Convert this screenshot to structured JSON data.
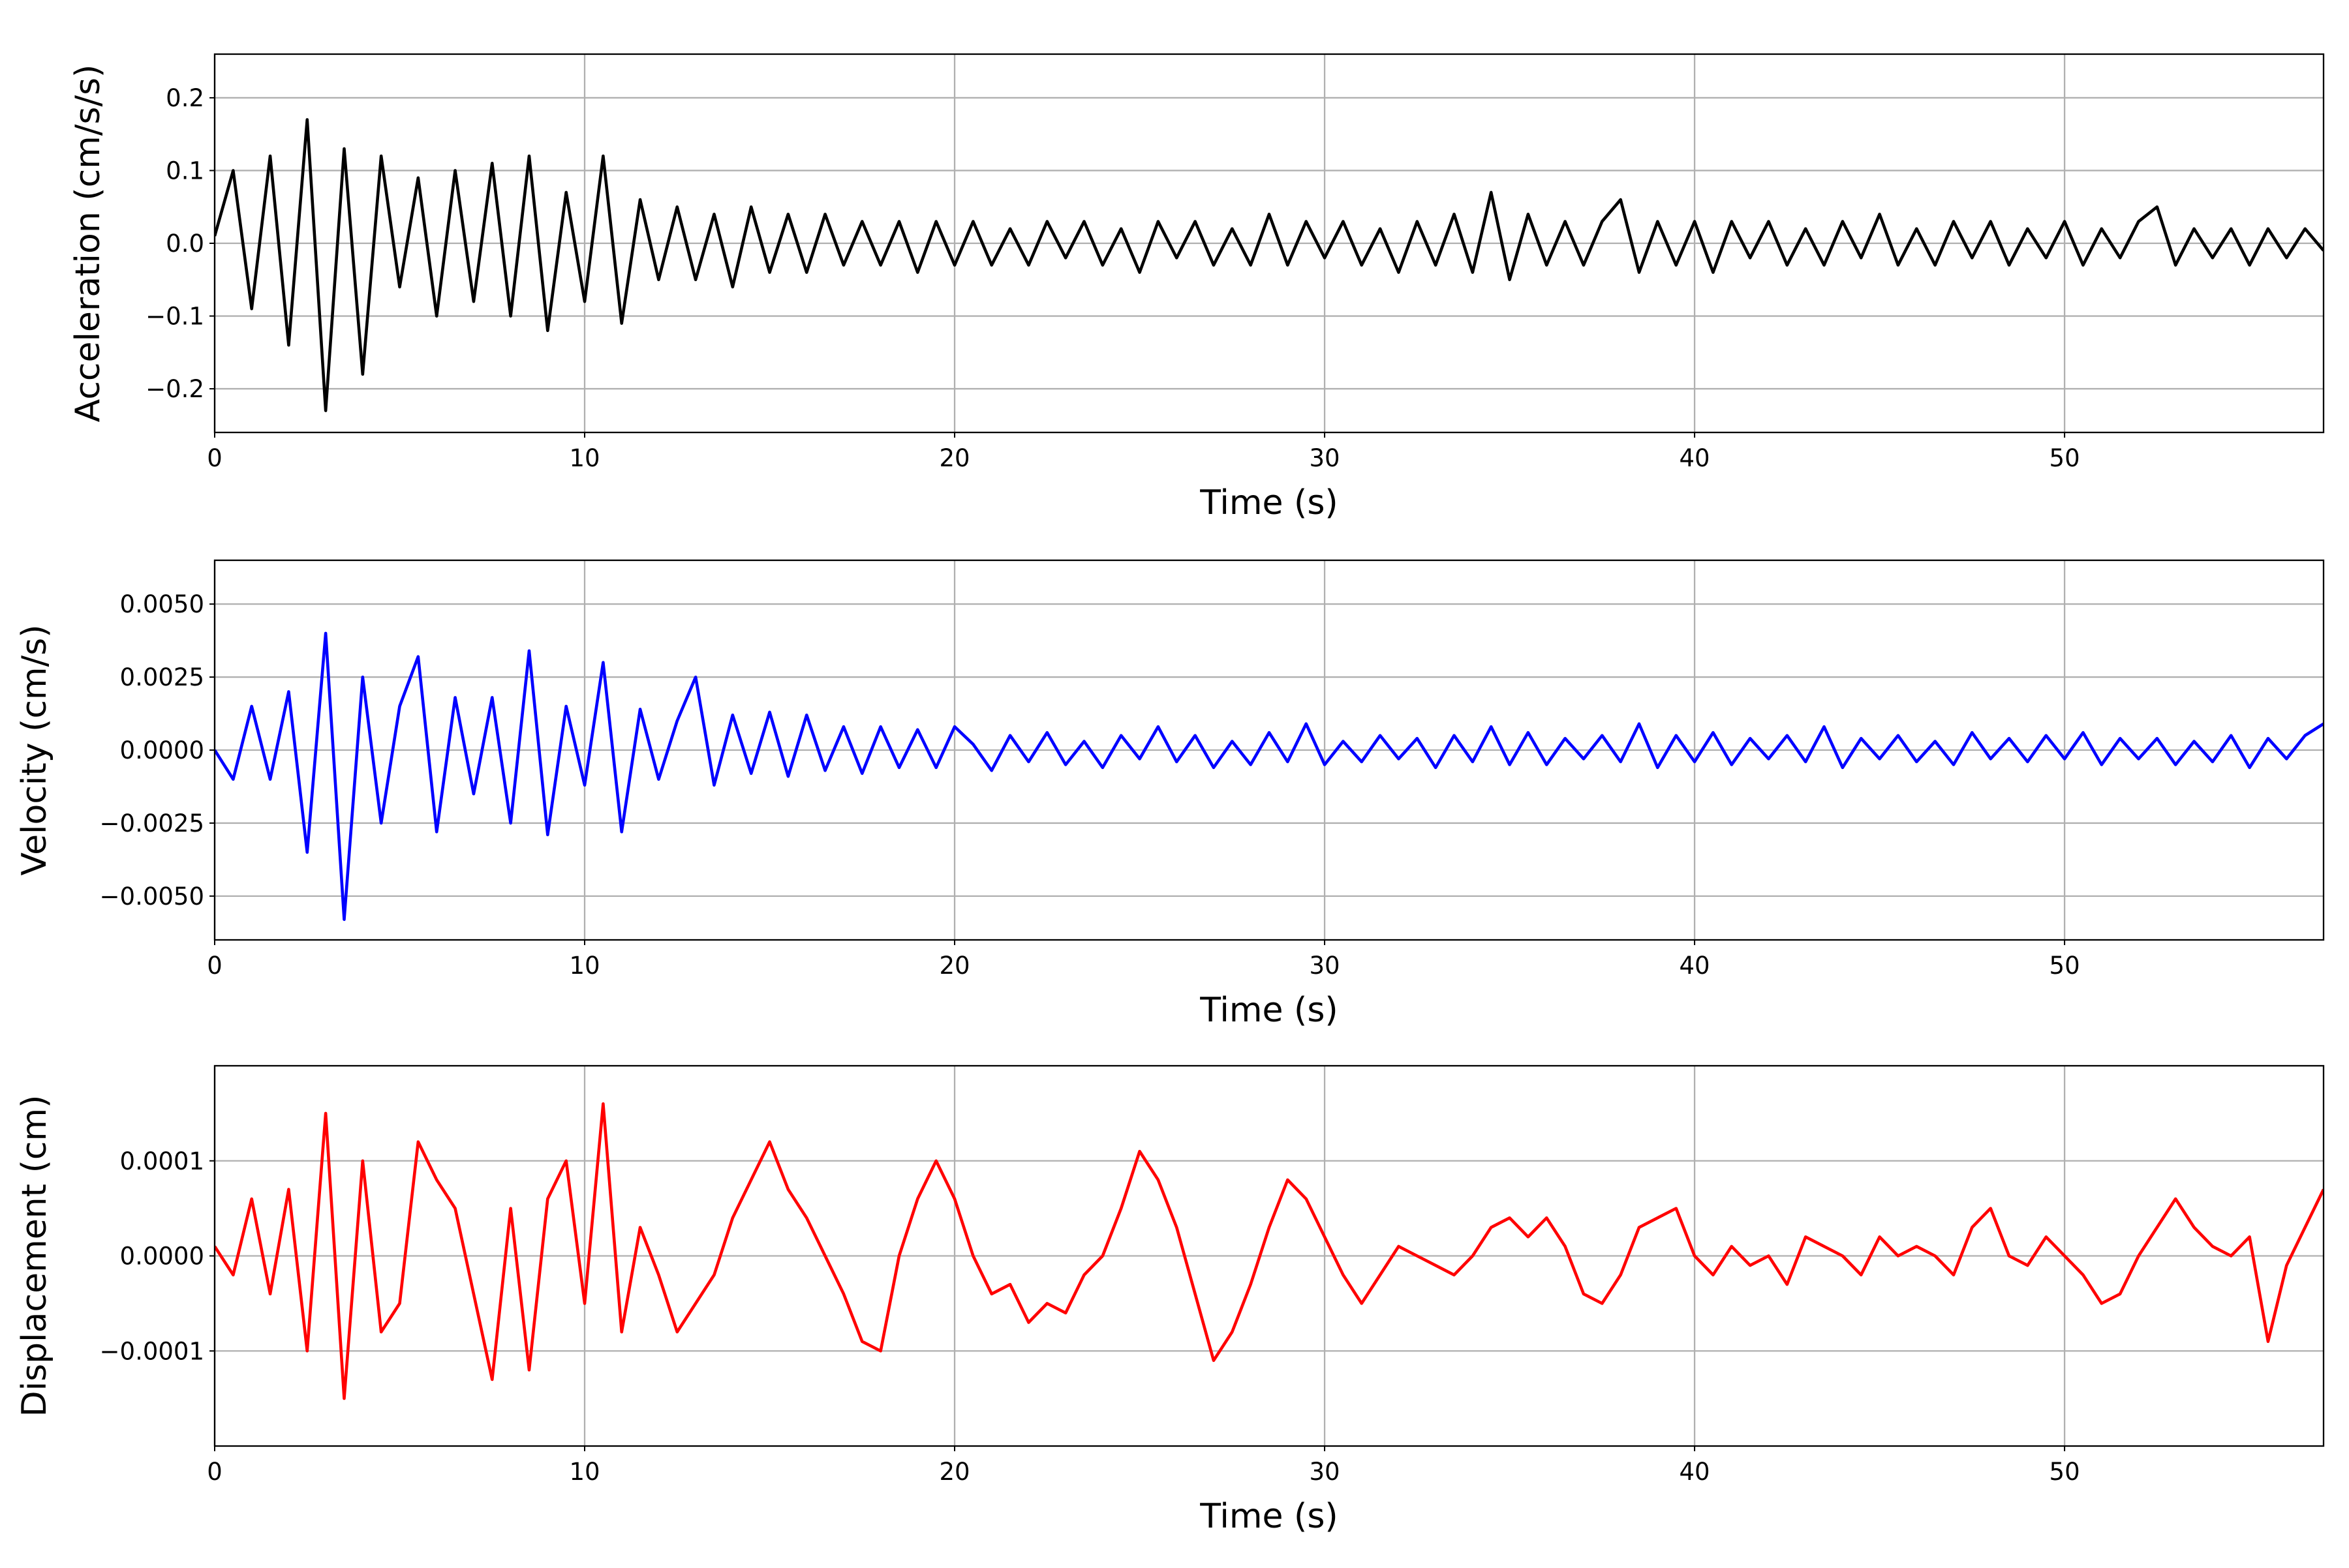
{
  "chart_data": [
    {
      "type": "line",
      "x_label": "Time (s)",
      "y_label": "Acceleration (cm/s/s)",
      "color": "#000000",
      "grid": true,
      "xlim": [
        0,
        57
      ],
      "xticks": [
        0,
        10,
        20,
        30,
        40,
        50
      ],
      "ylim": [
        -0.26,
        0.26
      ],
      "yticks": [
        {
          "value": -0.2,
          "label": "−0.2"
        },
        {
          "value": -0.1,
          "label": "−0.1"
        },
        {
          "value": 0,
          "label": "0.0"
        },
        0.1,
        0.2
      ],
      "x": [
        0,
        0.5,
        1,
        1.5,
        2,
        2.5,
        3,
        3.5,
        4,
        4.5,
        5,
        5.5,
        6,
        6.5,
        7,
        7.5,
        8,
        8.5,
        9,
        9.5,
        10,
        10.5,
        11,
        11.5,
        12,
        12.5,
        13,
        13.5,
        14,
        14.5,
        15,
        15.5,
        16,
        16.5,
        17,
        17.5,
        18,
        18.5,
        19,
        19.5,
        20,
        20.5,
        21,
        21.5,
        22,
        22.5,
        23,
        23.5,
        24,
        24.5,
        25,
        25.5,
        26,
        26.5,
        27,
        27.5,
        28,
        28.5,
        29,
        29.5,
        30,
        30.5,
        31,
        31.5,
        32,
        32.5,
        33,
        33.5,
        34,
        34.5,
        35,
        35.5,
        36,
        36.5,
        37,
        37.5,
        38,
        38.5,
        39,
        39.5,
        40,
        40.5,
        41,
        41.5,
        42,
        42.5,
        43,
        43.5,
        44,
        44.5,
        45,
        45.5,
        46,
        46.5,
        47,
        47.5,
        48,
        48.5,
        49,
        49.5,
        50,
        50.5,
        51,
        51.5,
        52,
        52.5,
        53,
        53.5,
        54,
        54.5,
        55,
        55.5,
        56,
        56.5,
        57
      ],
      "values": [
        0.01,
        0.1,
        -0.09,
        0.12,
        -0.14,
        0.17,
        -0.23,
        0.13,
        -0.18,
        0.12,
        -0.06,
        0.09,
        -0.1,
        0.1,
        -0.08,
        0.11,
        -0.1,
        0.12,
        -0.12,
        0.07,
        -0.08,
        0.12,
        -0.11,
        0.06,
        -0.05,
        0.05,
        -0.05,
        0.04,
        -0.06,
        0.05,
        -0.04,
        0.04,
        -0.04,
        0.04,
        -0.03,
        0.03,
        -0.03,
        0.03,
        -0.04,
        0.03,
        -0.03,
        0.03,
        -0.03,
        0.02,
        -0.03,
        0.03,
        -0.02,
        0.03,
        -0.03,
        0.02,
        -0.04,
        0.03,
        -0.02,
        0.03,
        -0.03,
        0.02,
        -0.03,
        0.04,
        -0.03,
        0.03,
        -0.02,
        0.03,
        -0.03,
        0.02,
        -0.04,
        0.03,
        -0.03,
        0.04,
        -0.04,
        0.07,
        -0.05,
        0.04,
        -0.03,
        0.03,
        -0.03,
        0.03,
        0.06,
        -0.04,
        0.03,
        -0.03,
        0.03,
        -0.04,
        0.03,
        -0.02,
        0.03,
        -0.03,
        0.02,
        -0.03,
        0.03,
        -0.02,
        0.04,
        -0.03,
        0.02,
        -0.03,
        0.03,
        -0.02,
        0.03,
        -0.03,
        0.02,
        -0.02,
        0.03,
        -0.03,
        0.02,
        -0.02,
        0.03,
        0.05,
        -0.03,
        0.02,
        -0.02,
        0.02,
        -0.03,
        0.02,
        -0.02,
        0.02,
        -0.01
      ]
    },
    {
      "type": "line",
      "x_label": "Time (s)",
      "y_label": "Velocity (cm/s)",
      "color": "#0000ff",
      "grid": true,
      "xlim": [
        0,
        57
      ],
      "xticks": [
        0,
        10,
        20,
        30,
        40,
        50
      ],
      "ylim": [
        -0.0065,
        0.0065
      ],
      "yticks": [
        {
          "value": -0.005,
          "label": "−0.0050"
        },
        {
          "value": -0.0025,
          "label": "−0.0025"
        },
        {
          "value": 0,
          "label": "0.0000"
        },
        {
          "value": 0.0025,
          "label": "0.0025"
        },
        {
          "value": 0.005,
          "label": "0.0050"
        }
      ],
      "x": [
        0,
        0.5,
        1,
        1.5,
        2,
        2.5,
        3,
        3.5,
        4,
        4.5,
        5,
        5.5,
        6,
        6.5,
        7,
        7.5,
        8,
        8.5,
        9,
        9.5,
        10,
        10.5,
        11,
        11.5,
        12,
        12.5,
        13,
        13.5,
        14,
        14.5,
        15,
        15.5,
        16,
        16.5,
        17,
        17.5,
        18,
        18.5,
        19,
        19.5,
        20,
        20.5,
        21,
        21.5,
        22,
        22.5,
        23,
        23.5,
        24,
        24.5,
        25,
        25.5,
        26,
        26.5,
        27,
        27.5,
        28,
        28.5,
        29,
        29.5,
        30,
        30.5,
        31,
        31.5,
        32,
        32.5,
        33,
        33.5,
        34,
        34.5,
        35,
        35.5,
        36,
        36.5,
        37,
        37.5,
        38,
        38.5,
        39,
        39.5,
        40,
        40.5,
        41,
        41.5,
        42,
        42.5,
        43,
        43.5,
        44,
        44.5,
        45,
        45.5,
        46,
        46.5,
        47,
        47.5,
        48,
        48.5,
        49,
        49.5,
        50,
        50.5,
        51,
        51.5,
        52,
        52.5,
        53,
        53.5,
        54,
        54.5,
        55,
        55.5,
        56,
        56.5,
        57
      ],
      "values": [
        0,
        -0.001,
        0.0015,
        -0.001,
        0.002,
        -0.0035,
        0.004,
        -0.0058,
        0.0025,
        -0.0025,
        0.0015,
        0.0032,
        -0.0028,
        0.0018,
        -0.0015,
        0.0018,
        -0.0025,
        0.0034,
        -0.0029,
        0.0015,
        -0.0012,
        0.003,
        -0.0028,
        0.0014,
        -0.001,
        0.001,
        0.0025,
        -0.0012,
        0.0012,
        -0.0008,
        0.0013,
        -0.0009,
        0.0012,
        -0.0007,
        0.0008,
        -0.0008,
        0.0008,
        -0.0006,
        0.0007,
        -0.0006,
        0.0008,
        0.0002,
        -0.0007,
        0.0005,
        -0.0004,
        0.0006,
        -0.0005,
        0.0003,
        -0.0006,
        0.0005,
        -0.0003,
        0.0008,
        -0.0004,
        0.0005,
        -0.0006,
        0.0003,
        -0.0005,
        0.0006,
        -0.0004,
        0.0009,
        -0.0005,
        0.0003,
        -0.0004,
        0.0005,
        -0.0003,
        0.0004,
        -0.0006,
        0.0005,
        -0.0004,
        0.0008,
        -0.0005,
        0.0006,
        -0.0005,
        0.0004,
        -0.0003,
        0.0005,
        -0.0004,
        0.0009,
        -0.0006,
        0.0005,
        -0.0004,
        0.0006,
        -0.0005,
        0.0004,
        -0.0003,
        0.0005,
        -0.0004,
        0.0008,
        -0.0006,
        0.0004,
        -0.0003,
        0.0005,
        -0.0004,
        0.0003,
        -0.0005,
        0.0006,
        -0.0003,
        0.0004,
        -0.0004,
        0.0005,
        -0.0003,
        0.0006,
        -0.0005,
        0.0004,
        -0.0003,
        0.0004,
        -0.0005,
        0.0003,
        -0.0004,
        0.0005,
        -0.0006,
        0.0004,
        -0.0003,
        0.0005,
        0.0009
      ]
    },
    {
      "type": "line",
      "x_label": "Time (s)",
      "y_label": "Displacement (cm)",
      "color": "#ff0000",
      "grid": true,
      "xlim": [
        0,
        57
      ],
      "xticks": [
        0,
        10,
        20,
        30,
        40,
        50
      ],
      "ylim": [
        -0.0002,
        0.0002
      ],
      "yticks": [
        {
          "value": -0.0001,
          "label": "−0.0001"
        },
        {
          "value": 0,
          "label": "0.0000"
        },
        0.0001
      ],
      "x": [
        0,
        0.5,
        1,
        1.5,
        2,
        2.5,
        3,
        3.5,
        4,
        4.5,
        5,
        5.5,
        6,
        6.5,
        7,
        7.5,
        8,
        8.5,
        9,
        9.5,
        10,
        10.5,
        11,
        11.5,
        12,
        12.5,
        13,
        13.5,
        14,
        14.5,
        15,
        15.5,
        16,
        16.5,
        17,
        17.5,
        18,
        18.5,
        19,
        19.5,
        20,
        20.5,
        21,
        21.5,
        22,
        22.5,
        23,
        23.5,
        24,
        24.5,
        25,
        25.5,
        26,
        26.5,
        27,
        27.5,
        28,
        28.5,
        29,
        29.5,
        30,
        30.5,
        31,
        31.5,
        32,
        32.5,
        33,
        33.5,
        34,
        34.5,
        35,
        35.5,
        36,
        36.5,
        37,
        37.5,
        38,
        38.5,
        39,
        39.5,
        40,
        40.5,
        41,
        41.5,
        42,
        42.5,
        43,
        43.5,
        44,
        44.5,
        45,
        45.5,
        46,
        46.5,
        47,
        47.5,
        48,
        48.5,
        49,
        49.5,
        50,
        50.5,
        51,
        51.5,
        52,
        52.5,
        53,
        53.5,
        54,
        54.5,
        55,
        55.5,
        56,
        56.5,
        57
      ],
      "values": [
        1e-05,
        -2e-05,
        6e-05,
        -4e-05,
        7e-05,
        -0.0001,
        0.00015,
        -0.00015,
        0.0001,
        -8e-05,
        -5e-05,
        0.00012,
        8e-05,
        5e-05,
        -4e-05,
        -0.00013,
        5e-05,
        -0.00012,
        6e-05,
        0.0001,
        -5e-05,
        0.00016,
        -8e-05,
        3e-05,
        -2e-05,
        -8e-05,
        -5e-05,
        -2e-05,
        4e-05,
        8e-05,
        0.00012,
        7e-05,
        4e-05,
        0,
        -4e-05,
        -9e-05,
        -0.0001,
        0,
        6e-05,
        0.0001,
        6e-05,
        0,
        -4e-05,
        -3e-05,
        -7e-05,
        -5e-05,
        -6e-05,
        -2e-05,
        0,
        5e-05,
        0.00011,
        8e-05,
        3e-05,
        -4e-05,
        -0.00011,
        -8e-05,
        -3e-05,
        3e-05,
        8e-05,
        6e-05,
        2e-05,
        -2e-05,
        -5e-05,
        -2e-05,
        1e-05,
        0,
        -1e-05,
        -2e-05,
        0,
        3e-05,
        4e-05,
        2e-05,
        4e-05,
        1e-05,
        -4e-05,
        -5e-05,
        -2e-05,
        3e-05,
        4e-05,
        5e-05,
        0,
        -2e-05,
        1e-05,
        -1e-05,
        0,
        -3e-05,
        2e-05,
        1e-05,
        0,
        -2e-05,
        2e-05,
        0,
        1e-05,
        0,
        -2e-05,
        3e-05,
        5e-05,
        0,
        -1e-05,
        2e-05,
        0,
        -2e-05,
        -5e-05,
        -4e-05,
        0,
        3e-05,
        6e-05,
        3e-05,
        1e-05,
        0,
        2e-05,
        -9e-05,
        -1e-05,
        3e-05,
        7e-05
      ]
    }
  ]
}
